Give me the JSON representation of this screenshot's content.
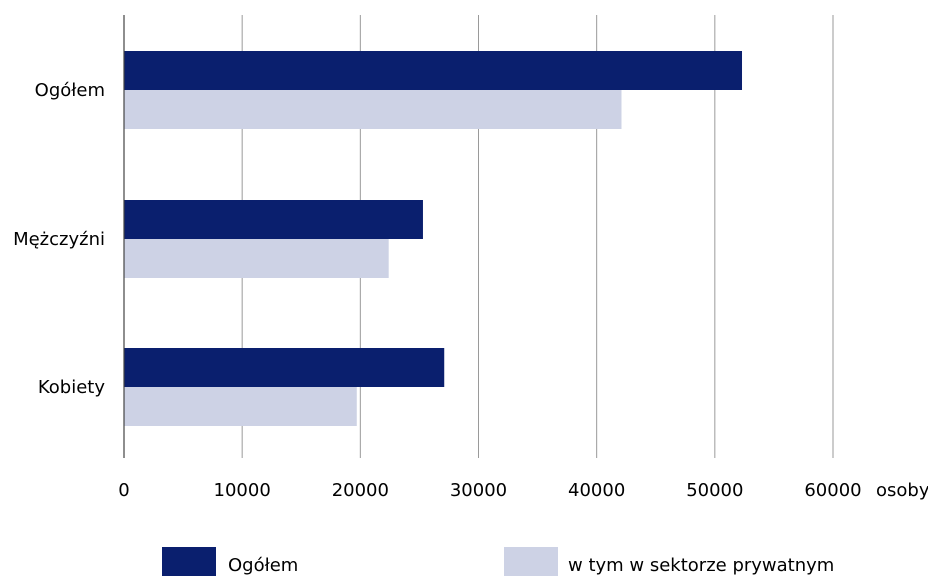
{
  "chart_data": {
    "type": "bar",
    "orientation": "horizontal",
    "title": "",
    "xlabel": "",
    "ylabel": "",
    "unit_label": "osoby",
    "xlim": [
      0,
      60000
    ],
    "x_ticks": [
      "0",
      "10000",
      "20000",
      "30000",
      "40000",
      "50000",
      "60000"
    ],
    "categories": [
      "Ogółem",
      "Mężczyźni",
      "Kobiety"
    ],
    "series": [
      {
        "name": "Ogółem",
        "color": "#0a1f6e",
        "values": [
          52300,
          25300,
          27100
        ]
      },
      {
        "name": "w tym w sektorze prywatnym",
        "color": "#cdd2e5",
        "values": [
          42100,
          22400,
          19700
        ]
      }
    ],
    "grid": true,
    "legend_position": "bottom"
  }
}
